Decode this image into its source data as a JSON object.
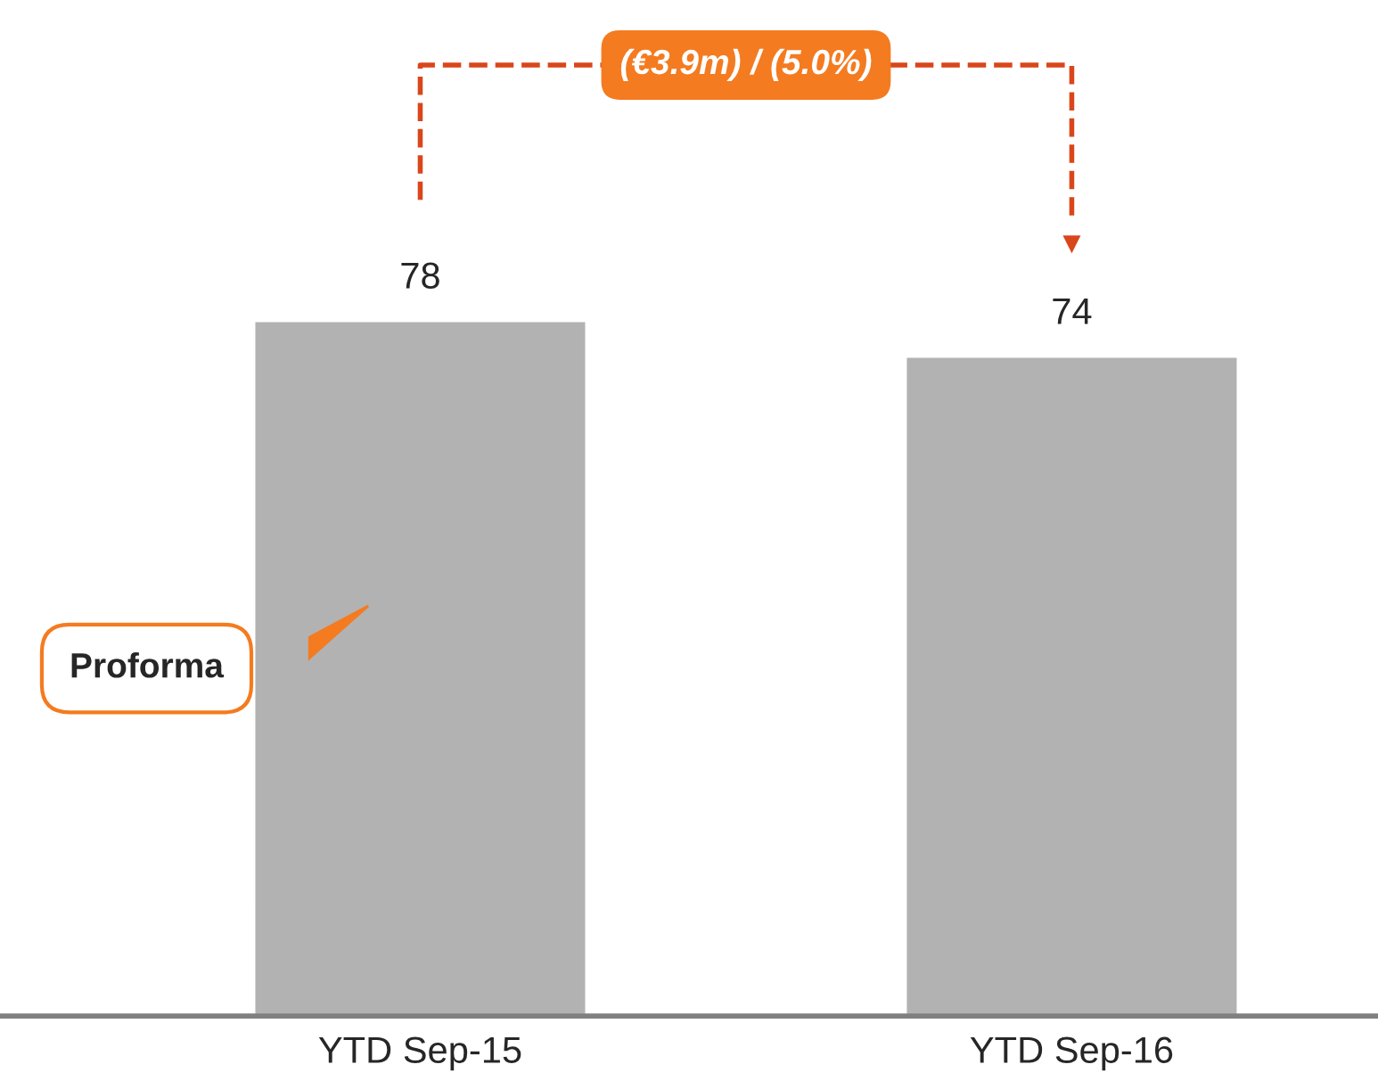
{
  "chart_data": {
    "type": "bar",
    "categories": [
      "YTD Sep-15",
      "YTD Sep-16"
    ],
    "values": [
      78,
      74
    ],
    "color": "#b2b2b2",
    "data_labels": true,
    "grid": false,
    "legend": false,
    "annotations": [
      "(€3.9m) / (5.0%)",
      "Proforma"
    ]
  }
}
